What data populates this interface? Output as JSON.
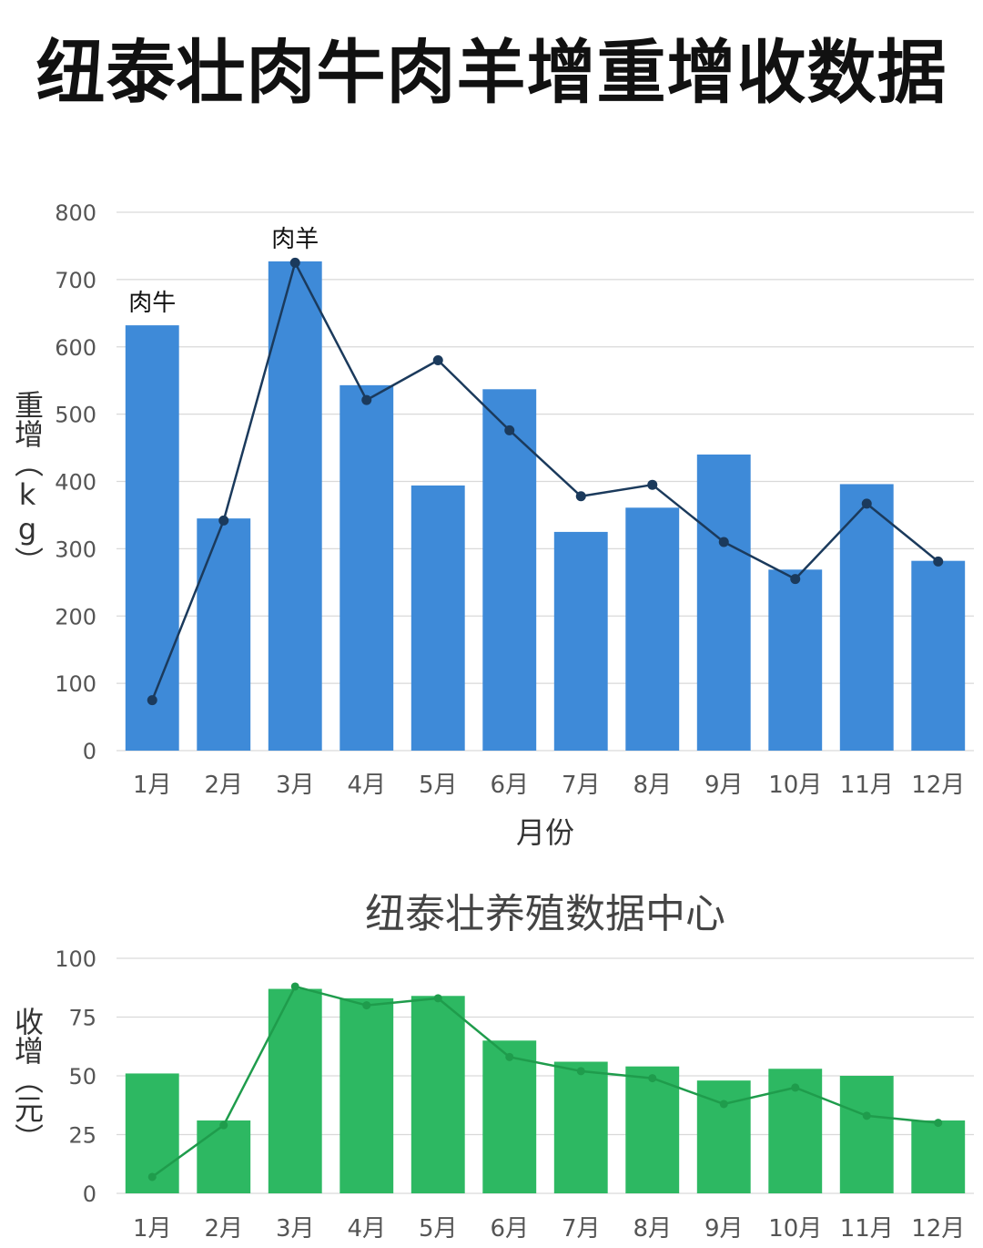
{
  "title": "纽泰壮肉牛肉羊增重增收数据",
  "chart_data": [
    {
      "type": "bar",
      "categories": [
        "1月",
        "2月",
        "3月",
        "4月",
        "5月",
        "6月",
        "7月",
        "8月",
        "9月",
        "10月",
        "11月",
        "12月"
      ],
      "series": [
        {
          "type": "bar",
          "values": [
            632,
            345,
            727,
            543,
            394,
            537,
            325,
            361,
            440,
            269,
            396,
            282
          ],
          "color": "#3e8ad8"
        },
        {
          "type": "line",
          "values": [
            75,
            342,
            725,
            521,
            580,
            476,
            378,
            395,
            310,
            255,
            367,
            281
          ],
          "color": "#1b3a5c"
        }
      ],
      "annotations": [
        {
          "text": "肉牛",
          "category": "1月",
          "value": 632
        },
        {
          "text": "肉羊",
          "category": "3月",
          "value": 727
        }
      ],
      "xlabel": "月份",
      "ylabel": "重增（kg）",
      "ylim": [
        0,
        800
      ],
      "yticks": [
        0,
        100,
        200,
        300,
        400,
        500,
        600,
        700,
        800
      ],
      "grid": true
    },
    {
      "type": "bar",
      "title": "纽泰壮养殖数据中心",
      "categories": [
        "1月",
        "2月",
        "3月",
        "4月",
        "5月",
        "6月",
        "7月",
        "8月",
        "9月",
        "10月",
        "11月",
        "12月"
      ],
      "series": [
        {
          "type": "bar",
          "values": [
            51,
            31,
            87,
            83,
            84,
            65,
            56,
            54,
            48,
            53,
            50,
            31
          ],
          "color": "#2db862"
        },
        {
          "type": "line",
          "values": [
            7,
            29,
            88,
            80,
            83,
            58,
            52,
            49,
            38,
            45,
            33,
            30
          ],
          "color": "#1f9c4c"
        }
      ],
      "ylabel": "收增（元）",
      "ylim": [
        0,
        100
      ],
      "yticks": [
        0,
        25,
        50,
        75,
        100
      ],
      "grid": true
    }
  ]
}
